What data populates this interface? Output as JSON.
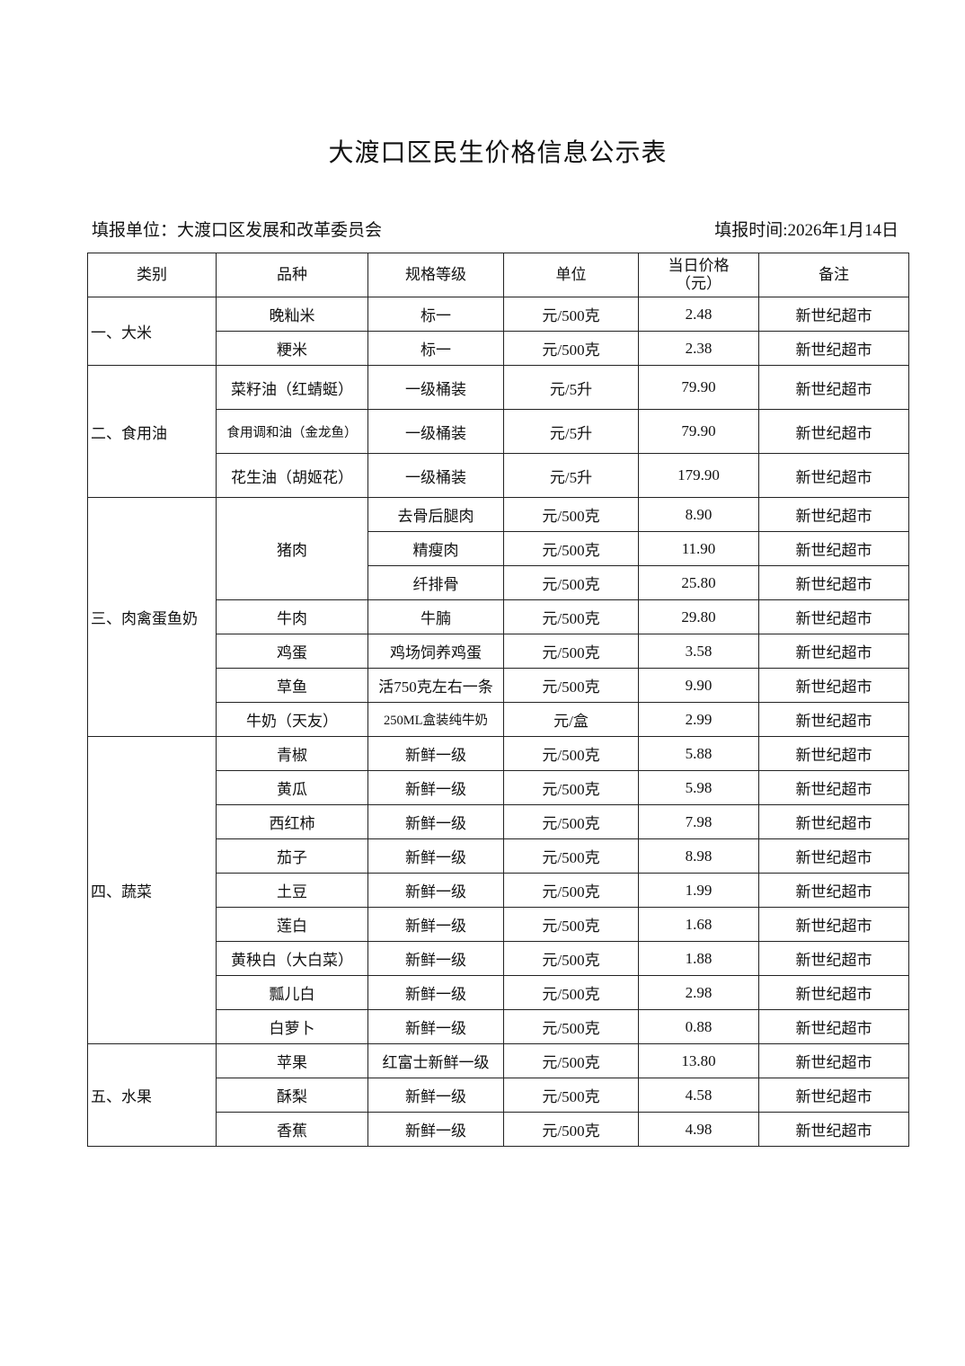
{
  "title": "大渡口区民生价格信息公示表",
  "unit_label": "填报单位：大渡口区发展和改革委员会",
  "date_label": "填报时间:2026年1月14日",
  "table": {
    "headers": [
      "类别",
      "品种",
      "规格等级",
      "单位",
      "当日价格（元）",
      "备注"
    ],
    "groups": [
      {
        "category": "一、大米",
        "rows": [
          {
            "item": "晚籼米",
            "spec": "标一",
            "unit": "元/500克",
            "price": "2.48",
            "note": "新世纪超市"
          },
          {
            "item": "粳米",
            "spec": "标一",
            "unit": "元/500克",
            "price": "2.38",
            "note": "新世纪超市"
          }
        ]
      },
      {
        "category": "二、食用油",
        "rows": [
          {
            "item": "菜籽油（红蜻蜓）",
            "spec": "一级桶装",
            "unit": "元/5升",
            "price": "79.90",
            "note": "新世纪超市"
          },
          {
            "item": "食用调和油（金龙鱼）",
            "spec": "一级桶装",
            "unit": "元/5升",
            "price": "79.90",
            "note": "新世纪超市"
          },
          {
            "item": "花生油（胡姬花）",
            "spec": "一级桶装",
            "unit": "元/5升",
            "price": "179.90",
            "note": "新世纪超市"
          }
        ]
      },
      {
        "category": "三、肉禽蛋鱼奶",
        "rows": [
          {
            "item": "猪肉",
            "span": 3,
            "spec": "去骨后腿肉",
            "unit": "元/500克",
            "price": "8.90",
            "note": "新世纪超市"
          },
          {
            "spec": "精瘦肉",
            "unit": "元/500克",
            "price": "11.90",
            "note": "新世纪超市"
          },
          {
            "spec": "纤排骨",
            "unit": "元/500克",
            "price": "25.80",
            "note": "新世纪超市"
          },
          {
            "item": "牛肉",
            "spec": "牛腩",
            "unit": "元/500克",
            "price": "29.80",
            "note": "新世纪超市"
          },
          {
            "item": "鸡蛋",
            "spec": "鸡场饲养鸡蛋",
            "unit": "元/500克",
            "price": "3.58",
            "note": "新世纪超市"
          },
          {
            "item": "草鱼",
            "spec": "活750克左右一条",
            "unit": "元/500克",
            "price": "9.90",
            "note": "新世纪超市"
          },
          {
            "item": "牛奶（天友）",
            "spec": "250ML盒装纯牛奶",
            "unit": "元/盒",
            "price": "2.99",
            "note": "新世纪超市"
          }
        ]
      },
      {
        "category": "四、蔬菜",
        "rows": [
          {
            "item": "青椒",
            "spec": "新鲜一级",
            "unit": "元/500克",
            "price": "5.88",
            "note": "新世纪超市"
          },
          {
            "item": "黄瓜",
            "spec": "新鲜一级",
            "unit": "元/500克",
            "price": "5.98",
            "note": "新世纪超市"
          },
          {
            "item": "西红柿",
            "spec": "新鲜一级",
            "unit": "元/500克",
            "price": "7.98",
            "note": "新世纪超市"
          },
          {
            "item": "茄子",
            "spec": "新鲜一级",
            "unit": "元/500克",
            "price": "8.98",
            "note": "新世纪超市"
          },
          {
            "item": "土豆",
            "spec": "新鲜一级",
            "unit": "元/500克",
            "price": "1.99",
            "note": "新世纪超市"
          },
          {
            "item": "莲白",
            "spec": "新鲜一级",
            "unit": "元/500克",
            "price": "1.68",
            "note": "新世纪超市"
          },
          {
            "item": "黄秧白（大白菜）",
            "spec": "新鲜一级",
            "unit": "元/500克",
            "price": "1.88",
            "note": "新世纪超市"
          },
          {
            "item": "瓢儿白",
            "spec": "新鲜一级",
            "unit": "元/500克",
            "price": "2.98",
            "note": "新世纪超市"
          },
          {
            "item": "白萝卜",
            "spec": "新鲜一级",
            "unit": "元/500克",
            "price": "0.88",
            "note": "新世纪超市"
          }
        ]
      },
      {
        "category": "五、水果",
        "rows": [
          {
            "item": "苹果",
            "spec": "红富士新鲜一级",
            "unit": "元/500克",
            "price": "13.80",
            "note": "新世纪超市"
          },
          {
            "item": "酥梨",
            "spec": "新鲜一级",
            "unit": "元/500克",
            "price": "4.58",
            "note": "新世纪超市"
          },
          {
            "item": "香蕉",
            "spec": "新鲜一级",
            "unit": "元/500克",
            "price": "4.98",
            "note": "新世纪超市"
          }
        ]
      }
    ]
  }
}
